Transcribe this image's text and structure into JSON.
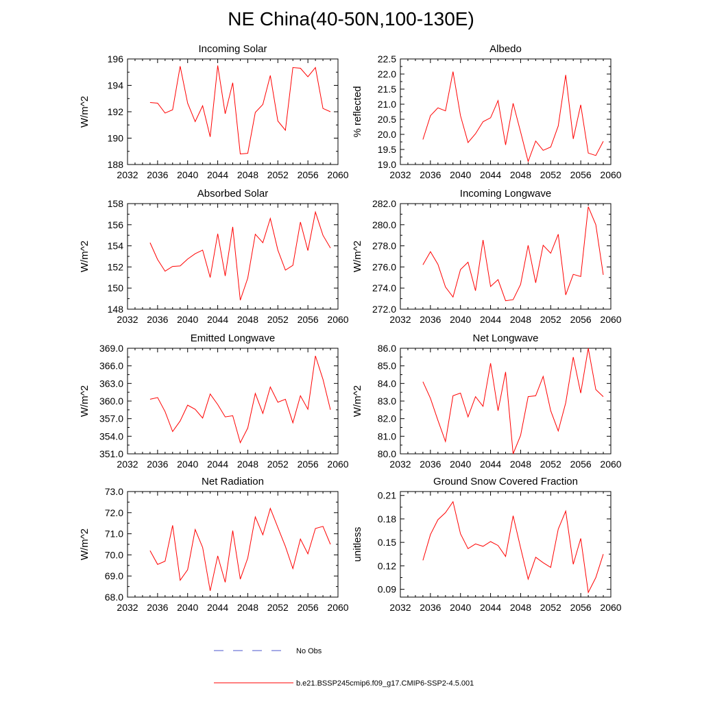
{
  "title": "NE China(40-50N,100-130E)",
  "legend": {
    "obs_label": "No Obs",
    "obs_color": "#4a55cc",
    "model_label": "b.e21.BSSP245cmip6.f09_g17.CMIP6-SSP2-4.5.001",
    "model_color": "#ff0000"
  },
  "chart_data": [
    {
      "type": "line",
      "title": "Incoming Solar",
      "ylabel": "W/m^2",
      "xlim": [
        2032,
        2060
      ],
      "xticks": [
        2032,
        2036,
        2040,
        2044,
        2048,
        2052,
        2056,
        2060
      ],
      "ylim": [
        188,
        196
      ],
      "yticks": [
        "188",
        "190",
        "192",
        "194",
        "196"
      ],
      "x": [
        2035,
        2036,
        2037,
        2038,
        2039,
        2040,
        2041,
        2042,
        2043,
        2044,
        2045,
        2046,
        2047,
        2048,
        2049,
        2050,
        2051,
        2052,
        2053,
        2054,
        2055,
        2056,
        2057,
        2058,
        2059
      ],
      "series": [
        {
          "values": [
            192.7,
            192.65,
            191.9,
            192.15,
            195.45,
            192.65,
            191.25,
            192.45,
            190.1,
            195.5,
            191.85,
            194.2,
            188.8,
            188.85,
            191.95,
            192.55,
            194.75,
            191.3,
            190.6,
            195.35,
            195.3,
            194.65,
            195.35,
            192.25,
            192.0
          ],
          "color": "#ff0000"
        }
      ]
    },
    {
      "type": "line",
      "title": "Albedo",
      "ylabel": "% reflected",
      "xlim": [
        2032,
        2060
      ],
      "xticks": [
        2032,
        2036,
        2040,
        2044,
        2048,
        2052,
        2056,
        2060
      ],
      "ylim": [
        19.0,
        22.5
      ],
      "yticks": [
        "19.0",
        "19.5",
        "20.0",
        "20.5",
        "21.0",
        "21.5",
        "22.0",
        "22.5"
      ],
      "x": [
        2035,
        2036,
        2037,
        2038,
        2039,
        2040,
        2041,
        2042,
        2043,
        2044,
        2045,
        2046,
        2047,
        2048,
        2049,
        2050,
        2051,
        2052,
        2053,
        2054,
        2055,
        2056,
        2057,
        2058,
        2059
      ],
      "series": [
        {
          "values": [
            19.83,
            20.62,
            20.88,
            20.78,
            22.08,
            20.62,
            19.73,
            20.02,
            20.42,
            20.55,
            21.12,
            19.65,
            21.03,
            20.08,
            19.1,
            19.78,
            19.47,
            19.58,
            20.28,
            21.97,
            19.85,
            20.98,
            19.38,
            19.3,
            19.77
          ],
          "color": "#ff0000"
        }
      ]
    },
    {
      "type": "line",
      "title": "Absorbed Solar",
      "ylabel": "W/m^2",
      "xlim": [
        2032,
        2060
      ],
      "xticks": [
        2032,
        2036,
        2040,
        2044,
        2048,
        2052,
        2056,
        2060
      ],
      "ylim": [
        148,
        158
      ],
      "yticks": [
        "148",
        "150",
        "152",
        "154",
        "156",
        "158"
      ],
      "x": [
        2035,
        2036,
        2037,
        2038,
        2039,
        2040,
        2041,
        2042,
        2043,
        2044,
        2045,
        2046,
        2047,
        2048,
        2049,
        2050,
        2051,
        2052,
        2053,
        2054,
        2055,
        2056,
        2057,
        2058,
        2059
      ],
      "series": [
        {
          "values": [
            154.3,
            152.7,
            151.6,
            152.05,
            152.1,
            152.75,
            153.25,
            153.6,
            151.0,
            155.15,
            151.15,
            155.8,
            148.85,
            150.95,
            155.1,
            154.3,
            156.6,
            153.6,
            151.7,
            152.15,
            156.25,
            153.55,
            157.2,
            155.0,
            153.8
          ],
          "color": "#ff0000"
        }
      ]
    },
    {
      "type": "line",
      "title": "Incoming Longwave",
      "ylabel": "W/m^2",
      "xlim": [
        2032,
        2060
      ],
      "xticks": [
        2032,
        2036,
        2040,
        2044,
        2048,
        2052,
        2056,
        2060
      ],
      "ylim": [
        272.0,
        282.0
      ],
      "yticks": [
        "272.0",
        "274.0",
        "276.0",
        "278.0",
        "280.0",
        "282.0"
      ],
      "x": [
        2035,
        2036,
        2037,
        2038,
        2039,
        2040,
        2041,
        2042,
        2043,
        2044,
        2045,
        2046,
        2047,
        2048,
        2049,
        2050,
        2051,
        2052,
        2053,
        2054,
        2055,
        2056,
        2057,
        2058,
        2059
      ],
      "series": [
        {
          "values": [
            276.2,
            277.45,
            276.25,
            274.1,
            273.15,
            275.75,
            276.45,
            273.75,
            278.55,
            274.15,
            274.8,
            272.8,
            272.9,
            274.35,
            278.05,
            274.5,
            278.05,
            277.3,
            279.1,
            273.35,
            275.3,
            275.1,
            281.7,
            280.0,
            275.25
          ],
          "color": "#ff0000"
        }
      ]
    },
    {
      "type": "line",
      "title": "Emitted Longwave",
      "ylabel": "W/m^2",
      "xlim": [
        2032,
        2060
      ],
      "xticks": [
        2032,
        2036,
        2040,
        2044,
        2048,
        2052,
        2056,
        2060
      ],
      "ylim": [
        351.0,
        369.0
      ],
      "yticks": [
        "351.0",
        "354.0",
        "357.0",
        "360.0",
        "363.0",
        "366.0",
        "369.0"
      ],
      "x": [
        2035,
        2036,
        2037,
        2038,
        2039,
        2040,
        2041,
        2042,
        2043,
        2044,
        2045,
        2046,
        2047,
        2048,
        2049,
        2050,
        2051,
        2052,
        2053,
        2054,
        2055,
        2056,
        2057,
        2058,
        2059
      ],
      "series": [
        {
          "values": [
            360.3,
            360.6,
            358.2,
            354.8,
            356.6,
            359.3,
            358.6,
            357.1,
            361.2,
            359.4,
            357.3,
            357.5,
            352.9,
            355.4,
            361.3,
            357.9,
            362.4,
            359.8,
            360.3,
            356.3,
            360.9,
            358.6,
            367.7,
            363.7,
            358.5
          ],
          "color": "#ff0000"
        }
      ]
    },
    {
      "type": "line",
      "title": "Net Longwave",
      "ylabel": "W/m^2",
      "xlim": [
        2032,
        2060
      ],
      "xticks": [
        2032,
        2036,
        2040,
        2044,
        2048,
        2052,
        2056,
        2060
      ],
      "ylim": [
        80.0,
        86.0
      ],
      "yticks": [
        "80.0",
        "81.0",
        "82.0",
        "83.0",
        "84.0",
        "85.0",
        "86.0"
      ],
      "x": [
        2035,
        2036,
        2037,
        2038,
        2039,
        2040,
        2041,
        2042,
        2043,
        2044,
        2045,
        2046,
        2047,
        2048,
        2049,
        2050,
        2051,
        2052,
        2053,
        2054,
        2055,
        2056,
        2057,
        2058,
        2059
      ],
      "series": [
        {
          "values": [
            84.1,
            83.15,
            81.9,
            80.7,
            83.3,
            83.45,
            82.1,
            83.25,
            82.7,
            85.15,
            82.45,
            84.65,
            80.0,
            81.05,
            83.25,
            83.3,
            84.4,
            82.45,
            81.3,
            82.9,
            85.5,
            83.45,
            86.0,
            83.65,
            83.25
          ],
          "color": "#ff0000"
        }
      ]
    },
    {
      "type": "line",
      "title": "Net Radiation",
      "ylabel": "W/m^2",
      "xlim": [
        2032,
        2060
      ],
      "xticks": [
        2032,
        2036,
        2040,
        2044,
        2048,
        2052,
        2056,
        2060
      ],
      "ylim": [
        68.0,
        73.0
      ],
      "yticks": [
        "68.0",
        "69.0",
        "70.0",
        "71.0",
        "72.0",
        "73.0"
      ],
      "x": [
        2035,
        2036,
        2037,
        2038,
        2039,
        2040,
        2041,
        2042,
        2043,
        2044,
        2045,
        2046,
        2047,
        2048,
        2049,
        2050,
        2051,
        2052,
        2053,
        2054,
        2055,
        2056,
        2057,
        2058,
        2059
      ],
      "series": [
        {
          "values": [
            70.2,
            69.55,
            69.7,
            71.4,
            68.8,
            69.3,
            71.2,
            70.35,
            68.3,
            69.95,
            68.7,
            71.15,
            68.85,
            69.85,
            71.8,
            70.95,
            72.2,
            71.3,
            70.4,
            69.35,
            70.75,
            70.05,
            71.25,
            71.35,
            70.5
          ],
          "color": "#ff0000"
        }
      ]
    },
    {
      "type": "line",
      "title": "Ground Snow Covered Fraction",
      "ylabel": "unitless",
      "xlim": [
        2032,
        2060
      ],
      "xticks": [
        2032,
        2036,
        2040,
        2044,
        2048,
        2052,
        2056,
        2060
      ],
      "ylim": [
        0.08,
        0.215
      ],
      "yticks": [
        "0.09",
        "0.12",
        "0.15",
        "0.18",
        "0.21"
      ],
      "x": [
        2035,
        2036,
        2037,
        2038,
        2039,
        2040,
        2041,
        2042,
        2043,
        2044,
        2045,
        2046,
        2047,
        2048,
        2049,
        2050,
        2051,
        2052,
        2053,
        2054,
        2055,
        2056,
        2057,
        2058,
        2059
      ],
      "series": [
        {
          "values": [
            0.127,
            0.16,
            0.179,
            0.188,
            0.202,
            0.161,
            0.142,
            0.148,
            0.145,
            0.151,
            0.146,
            0.132,
            0.184,
            0.143,
            0.103,
            0.131,
            0.124,
            0.118,
            0.167,
            0.19,
            0.122,
            0.155,
            0.086,
            0.105,
            0.135
          ],
          "color": "#ff0000"
        }
      ]
    }
  ]
}
